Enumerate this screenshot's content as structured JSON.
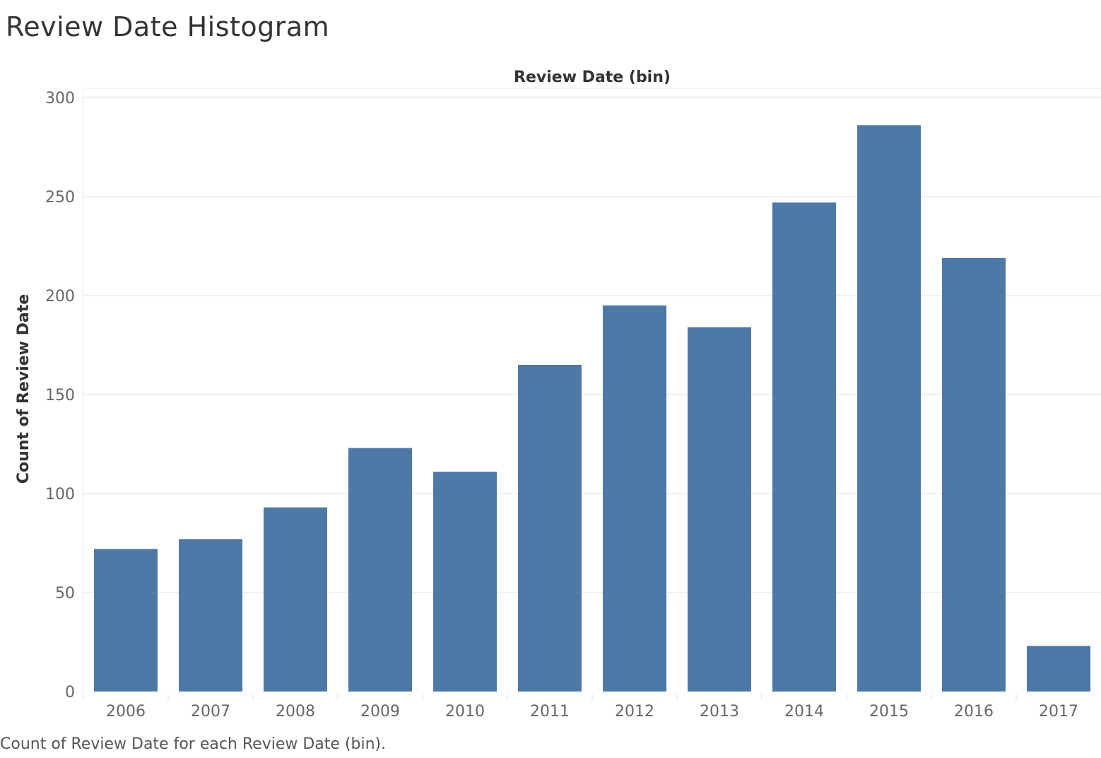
{
  "title": "Review Date Histogram",
  "caption": "Count of Review Date for each Review Date (bin).",
  "colors": {
    "bar": "#4e79a7",
    "grid": "#ebebeb",
    "title": "#333333",
    "tick": "#666666"
  },
  "chart_data": {
    "type": "bar",
    "title": "Review Date Histogram",
    "xlabel": "Review Date (bin)",
    "xlabel_position": "top",
    "ylabel": "Count of Review Date",
    "categories": [
      "2006",
      "2007",
      "2008",
      "2009",
      "2010",
      "2011",
      "2012",
      "2013",
      "2014",
      "2015",
      "2016",
      "2017"
    ],
    "values": [
      72,
      77,
      93,
      123,
      111,
      165,
      195,
      184,
      247,
      286,
      219,
      23
    ],
    "ylim": [
      0,
      300
    ],
    "yticks": [
      0,
      50,
      100,
      150,
      200,
      250,
      300
    ],
    "grid": true
  }
}
